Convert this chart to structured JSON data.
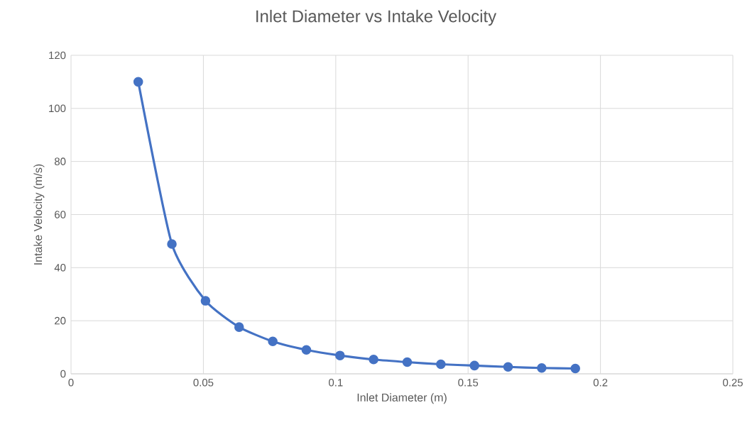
{
  "chart_data": {
    "type": "line",
    "title": "Inlet Diameter vs Intake Velocity",
    "xlabel": "Inlet Diameter (m)",
    "ylabel": "Intake Velocity (m/s)",
    "x": [
      0.0254,
      0.0381,
      0.0508,
      0.0635,
      0.0762,
      0.0889,
      0.1016,
      0.1143,
      0.127,
      0.1397,
      0.1524,
      0.1651,
      0.1778,
      0.1905
    ],
    "series": [
      {
        "color": "#4472c4",
        "values": [
          110,
          48.9,
          27.5,
          17.6,
          12.2,
          9,
          6.9,
          5.4,
          4.4,
          3.6,
          3.1,
          2.6,
          2.2,
          2
        ]
      }
    ],
    "xlim": [
      0,
      0.25
    ],
    "xticks": [
      0,
      0.05,
      0.1,
      0.15,
      0.2,
      0.25
    ],
    "ylim": [
      0,
      120
    ],
    "yticks": [
      0,
      20,
      40,
      60,
      80,
      100,
      120
    ],
    "grid": true,
    "marker": "circle",
    "line_style": "solid"
  }
}
